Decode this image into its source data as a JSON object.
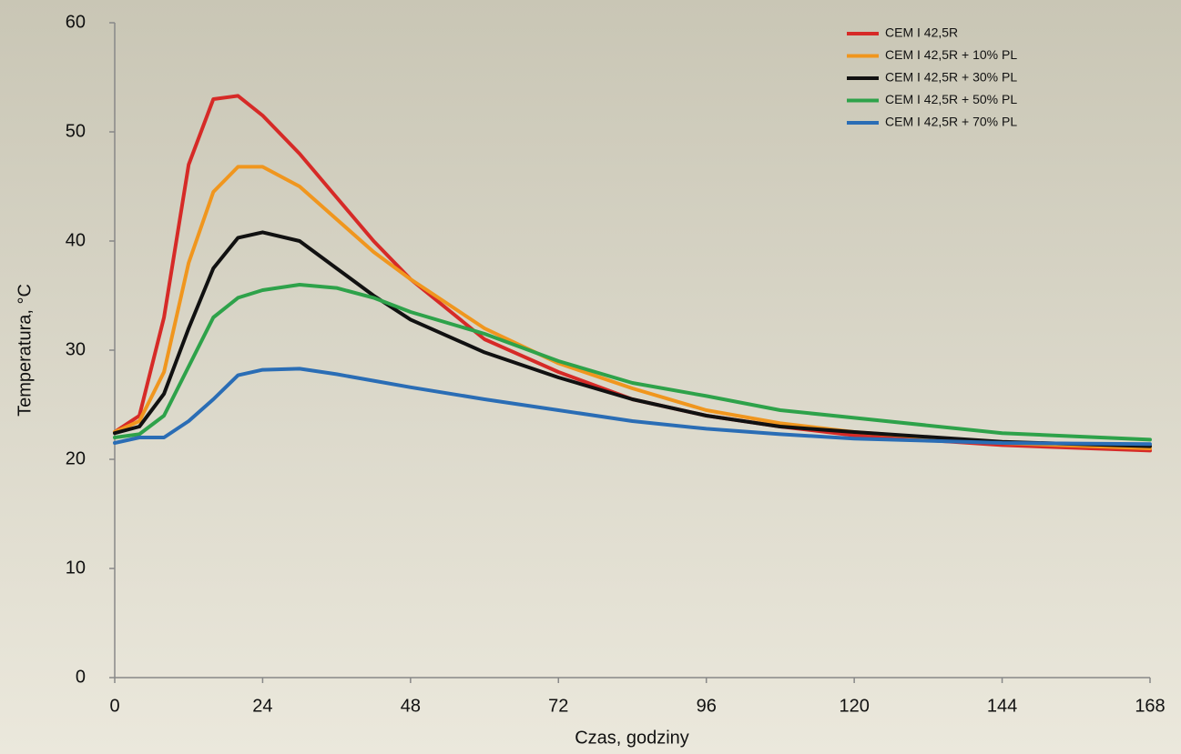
{
  "chart_data": {
    "type": "line",
    "x_label": "Czas, godziny",
    "y_label": "Temperatura, °C",
    "x": [
      0,
      4,
      8,
      12,
      16,
      20,
      24,
      30,
      36,
      42,
      48,
      60,
      72,
      84,
      96,
      108,
      120,
      144,
      168
    ],
    "series": [
      {
        "name": "CEM I 42,5R",
        "color": "#d62a27",
        "values": [
          22.5,
          24,
          33,
          47,
          53,
          53.3,
          51.5,
          48,
          44,
          40,
          36.5,
          31,
          28,
          25.5,
          24,
          23,
          22.2,
          21.3,
          20.8
        ]
      },
      {
        "name": "CEM I 42,5R + 10% PL",
        "color": "#f0961e",
        "values": [
          22.5,
          23.5,
          28,
          38,
          44.5,
          46.8,
          46.8,
          45,
          42,
          39,
          36.5,
          32,
          28.8,
          26.5,
          24.5,
          23.3,
          22.5,
          21.5,
          21
        ]
      },
      {
        "name": "CEM I 42,5R + 30% PL",
        "color": "#111111",
        "values": [
          22.4,
          23,
          26,
          32,
          37.5,
          40.3,
          40.8,
          40,
          37.5,
          35,
          32.8,
          29.8,
          27.5,
          25.5,
          24,
          23,
          22.5,
          21.6,
          21.2
        ]
      },
      {
        "name": "CEM I 42,5R + 50% PL",
        "color": "#2ea24a",
        "values": [
          22,
          22.3,
          24,
          28.5,
          33,
          34.8,
          35.5,
          36,
          35.7,
          34.8,
          33.5,
          31.5,
          29,
          27,
          25.8,
          24.5,
          23.8,
          22.4,
          21.8
        ]
      },
      {
        "name": "CEM I 42,5R + 70% PL",
        "color": "#2a6db5",
        "values": [
          21.5,
          22,
          22,
          23.5,
          25.5,
          27.7,
          28.2,
          28.3,
          27.8,
          27.2,
          26.6,
          25.5,
          24.5,
          23.5,
          22.8,
          22.3,
          21.9,
          21.5,
          21.4
        ]
      }
    ],
    "xlim": [
      0,
      168
    ],
    "xticks": [
      0,
      24,
      48,
      72,
      96,
      120,
      144,
      168
    ],
    "ylim": [
      0,
      60
    ],
    "yticks": [
      0,
      10,
      20,
      30,
      40,
      50,
      60
    ],
    "legend": "upper right"
  }
}
